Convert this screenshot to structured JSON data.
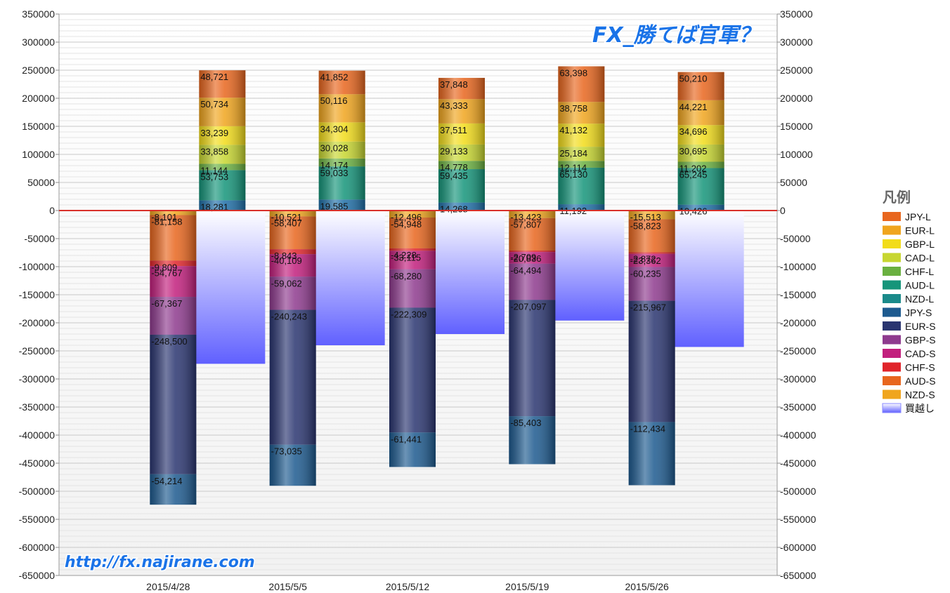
{
  "chart_data": {
    "type": "bar",
    "title": "FX_勝てば官軍？",
    "url_text": "http://fx.najirane.com",
    "categories": [
      "2015/4/28",
      "2015/5/5",
      "2015/5/12",
      "2015/5/19",
      "2015/5/26"
    ],
    "ylim": [
      -650000,
      350000
    ],
    "yticks": [
      350000,
      300000,
      250000,
      200000,
      150000,
      100000,
      50000,
      0,
      -50000,
      -100000,
      -150000,
      -200000,
      -250000,
      -300000,
      -350000,
      -400000,
      -450000,
      -500000,
      -550000,
      -600000,
      -650000
    ],
    "grid": true,
    "stacked": true,
    "legend_position": "right",
    "legend_title": "凡例",
    "legend_note": "買越し",
    "long_series": [
      {
        "name": "NZD-L",
        "color": "#1f6fa8",
        "values": [
          18281,
          19585,
          14268,
          11192,
          10426
        ],
        "labels": [
          "18,281",
          "19,585",
          "14,268",
          "11,192",
          "10,426"
        ]
      },
      {
        "name": "AUD-L",
        "color": "#15957a",
        "values": [
          53753,
          59033,
          59435,
          65130,
          65245
        ],
        "labels": [
          "53,753",
          "59,033",
          "59,435",
          "65,130",
          "65,245"
        ]
      },
      {
        "name": "CHF-L",
        "color": "#6ab040",
        "values": [
          11144,
          14174,
          14778,
          12114,
          11202
        ],
        "labels": [
          "11,144",
          "14,174",
          "14,778",
          "12,114",
          "11,202"
        ]
      },
      {
        "name": "CAD-L",
        "color": "#c7d630",
        "values": [
          33858,
          30028,
          29133,
          25184,
          30695
        ],
        "labels": [
          "33,858",
          "30,028",
          "29,133",
          "25,184",
          "30,695"
        ]
      },
      {
        "name": "GBP-L",
        "color": "#f2dc1a",
        "values": [
          33239,
          34304,
          37511,
          41132,
          34696
        ],
        "labels": [
          "33,239",
          "34,304",
          "37,511",
          "41,132",
          "34,696"
        ]
      },
      {
        "name": "EUR-L",
        "color": "#f0a51e",
        "values": [
          50734,
          50116,
          43333,
          38758,
          44221
        ],
        "labels": [
          "50,734",
          "50,116",
          "43,333",
          "38,758",
          "44,221"
        ]
      },
      {
        "name": "JPY-L",
        "color": "#e8661e",
        "values": [
          48721,
          41852,
          37848,
          63398,
          50210
        ],
        "labels": [
          "48,721",
          "41,852",
          "37,848",
          "63,398",
          "50,210"
        ]
      }
    ],
    "short_series": [
      {
        "name": "NZD-S",
        "color": "#f0a51e",
        "values": [
          -8101,
          -10521,
          -12496,
          -13423,
          -15513
        ],
        "labels": [
          "-8,101",
          "-10,521",
          "-12,496",
          "-13,423",
          "-15,513"
        ]
      },
      {
        "name": "AUD-S",
        "color": "#e8661e",
        "values": [
          -81158,
          -58407,
          -54948,
          -57807,
          -58823
        ],
        "labels": [
          "-81,158",
          "-58,407",
          "-54,948",
          "-57,807",
          "-58,823"
        ]
      },
      {
        "name": "CHF-S",
        "color": "#e0242a",
        "values": [
          -9809,
          -8843,
          -4228,
          -2709,
          -2872
        ],
        "labels": [
          "-9,809",
          "-8,843",
          "-4,228",
          "-2,709",
          "-2,872"
        ]
      },
      {
        "name": "CAD-S",
        "color": "#c21f7d",
        "values": [
          -54767,
          -40109,
          -33115,
          -20836,
          -23362
        ],
        "labels": [
          "-54,767",
          "-40,109",
          "-33,115",
          "-20,836",
          "-23,362"
        ]
      },
      {
        "name": "GBP-S",
        "color": "#8e3a8e",
        "values": [
          -67367,
          -59062,
          -68280,
          -64494,
          -60235
        ],
        "labels": [
          "-67,367",
          "-59,062",
          "-68,280",
          "-64,494",
          "-60,235"
        ]
      },
      {
        "name": "EUR-S",
        "color": "#2a3570",
        "values": [
          -248500,
          -240243,
          -222309,
          -207097,
          -215967
        ],
        "labels": [
          "-248,500",
          "-240,243",
          "-222,309",
          "-207,097",
          "-215,967"
        ]
      },
      {
        "name": "JPY-S",
        "color": "#1d5a8f",
        "values": [
          -54214,
          -73035,
          -61441,
          -85403,
          -112434
        ],
        "labels": [
          "-54,214",
          "-73,035",
          "-61,441",
          "-85,403",
          "-112,434"
        ]
      }
    ],
    "net_series": {
      "name": "買越し",
      "color": "#6666ff",
      "values": [
        -273000,
        -240000,
        -220000,
        -196000,
        -243000
      ]
    },
    "legend_items": [
      {
        "name": "JPY-L",
        "color": "#e8661e"
      },
      {
        "name": "EUR-L",
        "color": "#f0a51e"
      },
      {
        "name": "GBP-L",
        "color": "#f2dc1a"
      },
      {
        "name": "CAD-L",
        "color": "#c7d630"
      },
      {
        "name": "CHF-L",
        "color": "#6ab040"
      },
      {
        "name": "AUD-L",
        "color": "#15957a"
      },
      {
        "name": "NZD-L",
        "color": "#1a8a8a"
      },
      {
        "name": "JPY-S",
        "color": "#1d5a8f"
      },
      {
        "name": "EUR-S",
        "color": "#2a3570"
      },
      {
        "name": "GBP-S",
        "color": "#8e3a8e"
      },
      {
        "name": "CAD-S",
        "color": "#c21f7d"
      },
      {
        "name": "CHF-S",
        "color": "#e0242a"
      },
      {
        "name": "AUD-S",
        "color": "#e8661e"
      },
      {
        "name": "NZD-S",
        "color": "#f0a51e"
      },
      {
        "name": "買越し",
        "color": "#8888ff"
      }
    ]
  }
}
